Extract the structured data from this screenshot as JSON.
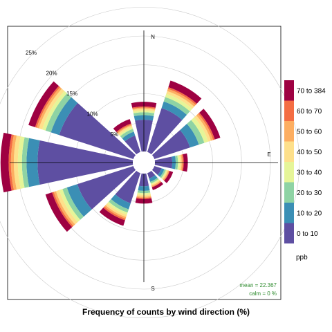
{
  "chart_data": {
    "type": "polar-stacked-bar",
    "title": "Frequency of counts by wind direction (%)",
    "directions": [
      0,
      30,
      60,
      90,
      120,
      150,
      180,
      210,
      240,
      270,
      300,
      330
    ],
    "compass_labels": [
      "N",
      "E",
      "S"
    ],
    "rings": [
      5,
      10,
      15,
      20,
      25
    ],
    "ring_labels": [
      "5%",
      "10%",
      "15%",
      "20%",
      "25%"
    ],
    "rmax": 25,
    "legend_title": "ppb",
    "series": [
      {
        "name": "0 to 10",
        "color": "#5e4fa2",
        "values": [
          5.5,
          8.0,
          6.5,
          3.0,
          1.3,
          1.0,
          2.2,
          5.5,
          10.2,
          16.5,
          13.5,
          3.0
        ]
      },
      {
        "name": "10 to 20",
        "color": "#3b8fb5",
        "values": [
          0.8,
          1.2,
          1.6,
          0.6,
          0.5,
          0.6,
          0.8,
          1.1,
          1.9,
          1.9,
          1.5,
          0.7
        ]
      },
      {
        "name": "20 to 30",
        "color": "#8ed3a4",
        "values": [
          0.5,
          0.8,
          1.0,
          0.4,
          0.3,
          0.3,
          0.4,
          0.6,
          0.8,
          0.8,
          1.0,
          0.5
        ]
      },
      {
        "name": "30 to 40",
        "color": "#e6f598",
        "values": [
          0.3,
          0.6,
          0.7,
          0.3,
          0.2,
          0.2,
          0.3,
          0.4,
          0.6,
          0.7,
          0.6,
          0.3
        ]
      },
      {
        "name": "40 to 50",
        "color": "#fee08b",
        "values": [
          0.3,
          0.5,
          0.5,
          0.3,
          0.2,
          0.2,
          0.3,
          0.4,
          0.6,
          0.7,
          0.6,
          0.3
        ]
      },
      {
        "name": "50 to 60",
        "color": "#fdae61",
        "values": [
          0.2,
          0.4,
          0.4,
          0.2,
          0.2,
          0.2,
          0.2,
          0.3,
          0.4,
          0.5,
          0.4,
          0.2
        ]
      },
      {
        "name": "60 to 70",
        "color": "#f46d43",
        "values": [
          0.2,
          0.3,
          0.3,
          0.2,
          0.1,
          0.1,
          0.2,
          0.3,
          0.3,
          0.4,
          0.3,
          0.2
        ]
      },
      {
        "name": "70 to 384",
        "color": "#9e0142",
        "values": [
          0.8,
          1.2,
          1.0,
          0.7,
          0.6,
          0.5,
          0.8,
          1.0,
          1.2,
          1.4,
          1.2,
          0.8
        ]
      }
    ],
    "stats": {
      "mean": "mean = 22.367",
      "calm": "calm = 0 %"
    }
  }
}
